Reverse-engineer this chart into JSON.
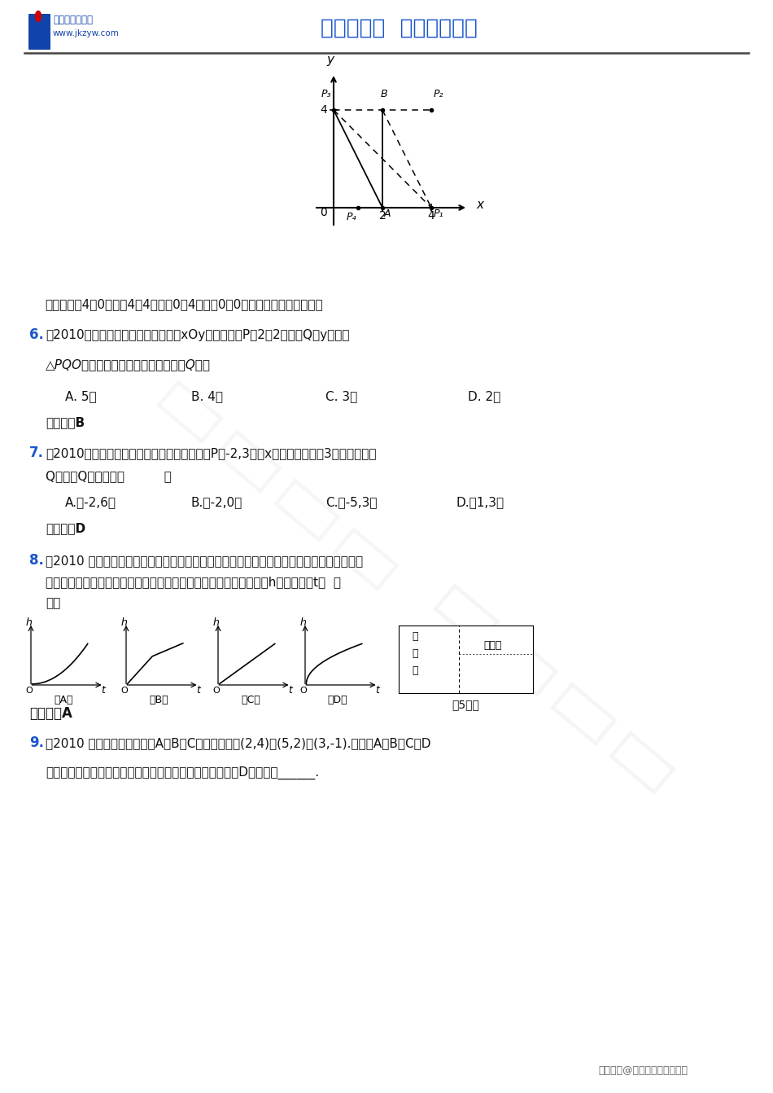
{
  "bg_color": "#ffffff",
  "logo_text1": "中国教考资源网",
  "logo_text2": "www.jkzyw.com",
  "header_title": "教考资源网  助您教考无忧",
  "answer_line": "【答案】（4，0）；（4，4）；（0，4）；（0，0）（只要写出一个即可）",
  "q6_num": "6.",
  "q6_color": "#1a56cc",
  "q6_line1": "（2010江苏南通）在平面直角坐标系xOy中，已知点P（2，2），点Q在y轴上，",
  "q6_line2": "△PQO是等腰三角形，则满足条件的点Q共有",
  "q6_choices": [
    "A. 5个",
    "B. 4个",
    "C. 3个",
    "D. 2个"
  ],
  "q6_answer": "【答案】B",
  "q7_num": "7.",
  "q7_color": "#1a56cc",
  "q7_line1": "（2010广东珠海）在平面直角坐标系中，将点P（-2,3）沿x轴方向向右平移3个单位得到点",
  "q7_line2": "Q，则点Q的坐标是（          ）",
  "q7_choices": [
    "A.（-2,6）",
    "B.（-2,0）",
    "C.（-5,3）",
    "D.（1,3）"
  ],
  "q7_answer": "【答案】D",
  "q8_num": "8.",
  "q8_color": "#1a56cc",
  "q8_line1": "（2010 山东省德州）某游泳池的横截面如图所示，用一水管向池内持续注水，若单位时间内",
  "q8_line2": "注入的水量保持不变，则在注水过程中，下列图象能反映深水区水深h与注水时间t关  系",
  "q8_line3": "的是",
  "q8_answer": "【答案】A",
  "q9_num": "9.",
  "q9_color": "#1a56cc",
  "q9_line1": "（2010 山东威海）如图，点A、B、C的坐标分别为(2,4)，(5,2)，(3,-1).若以点A、B、C、D",
  "q9_line2": "为顶点的四边形既是轴对称图形，又是中心对称图形，则点D的坐标为______.",
  "footer_text": "版权所有@中国教育考试资源网",
  "pool_deep": "深",
  "pool_water": "水",
  "pool_area": "区",
  "pool_shallow": "浅水区",
  "q5_fig_label": "第5题图"
}
